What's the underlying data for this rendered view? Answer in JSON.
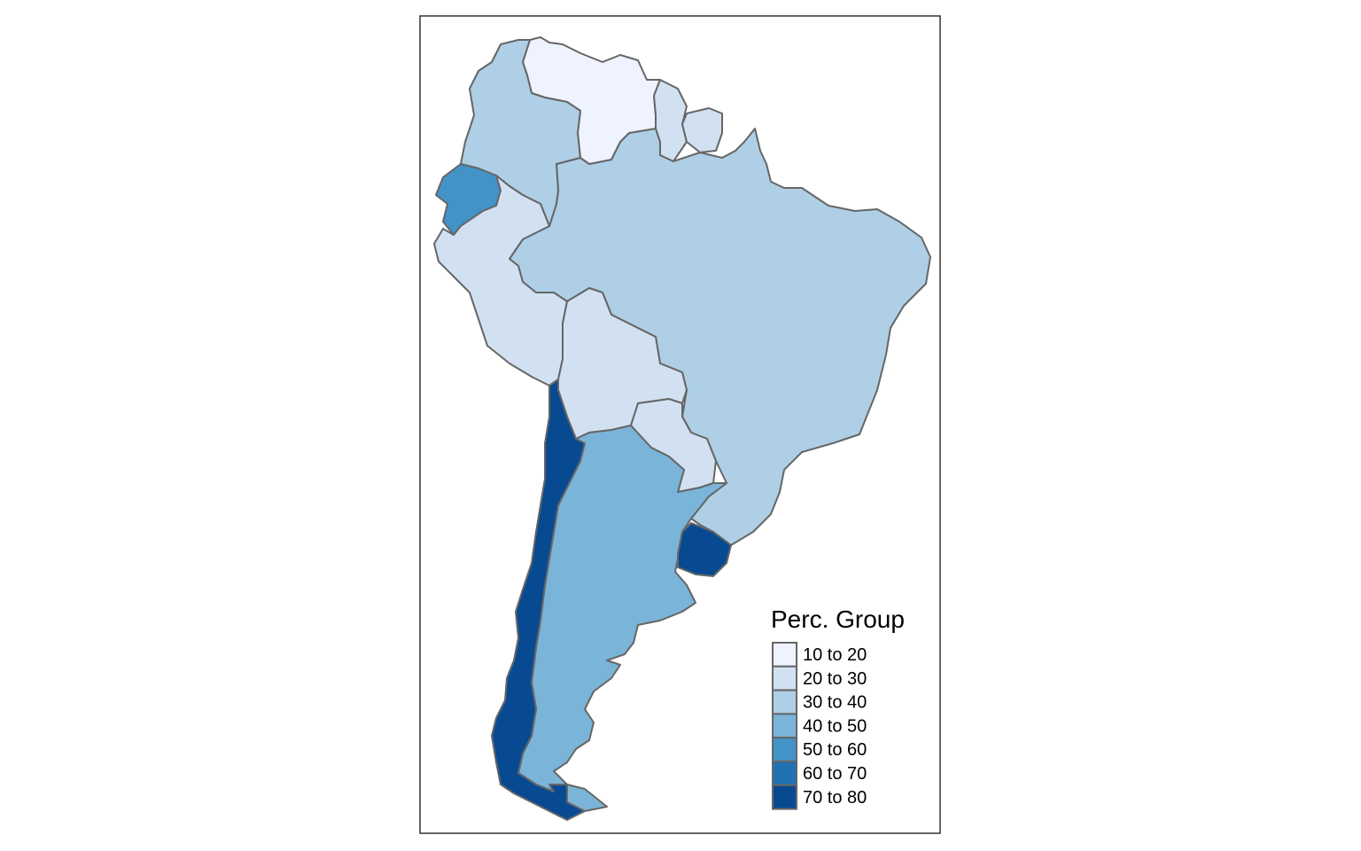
{
  "legend": {
    "title": "Perc. Group",
    "classes": [
      {
        "label": "10 to 20",
        "color": "#eff3ff"
      },
      {
        "label": "20 to 30",
        "color": "#d1e1f2"
      },
      {
        "label": "30 to 40",
        "color": "#aecfe6"
      },
      {
        "label": "40 to 50",
        "color": "#7bb4d9"
      },
      {
        "label": "50 to 60",
        "color": "#4393c8"
      },
      {
        "label": "60 to 70",
        "color": "#2171b5"
      },
      {
        "label": "70 to 80",
        "color": "#084a92"
      }
    ]
  },
  "colors": {
    "frame": "#333333",
    "border": "#666666"
  },
  "regions": [
    {
      "id": "venezuela",
      "group": 0
    },
    {
      "id": "colombia",
      "group": 2
    },
    {
      "id": "guyana",
      "group": 1
    },
    {
      "id": "suriname",
      "group": 1
    },
    {
      "id": "ecuador",
      "group": 4
    },
    {
      "id": "peru",
      "group": 1
    },
    {
      "id": "brazil",
      "group": 2
    },
    {
      "id": "bolivia",
      "group": 1
    },
    {
      "id": "paraguay",
      "group": 1
    },
    {
      "id": "chile",
      "group": 6
    },
    {
      "id": "argentina",
      "group": 3
    },
    {
      "id": "uruguay",
      "group": 6
    }
  ]
}
